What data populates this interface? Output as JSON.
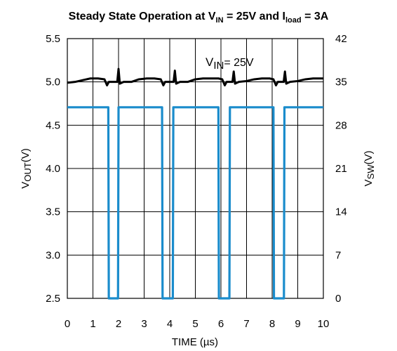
{
  "chart_data": {
    "type": "line",
    "title": {
      "p1": "Steady State Operation at V",
      "sub1": "IN",
      "p2": " = 25V and I",
      "sub2": "load",
      "p3": " = 3A"
    },
    "xlabel": "TIME (µs)",
    "ylabel_left": {
      "main": "V",
      "sub": "OUT",
      "unit": "(V)"
    },
    "ylabel_right": {
      "main": "V",
      "sub": "SW",
      "unit": "(V)"
    },
    "annotation": {
      "main": "V",
      "sub": "IN",
      "rest": "= 25V"
    },
    "xlim": [
      0,
      10
    ],
    "ylim_left": [
      2.5,
      5.5
    ],
    "ylim_right": [
      0,
      42
    ],
    "x_ticks": [
      "0",
      "1",
      "2",
      "3",
      "4",
      "5",
      "6",
      "7",
      "8",
      "9",
      "10"
    ],
    "y_left_ticks": [
      "5.5",
      "5.0",
      "4.5",
      "4.0",
      "3.5",
      "3.0",
      "2.5"
    ],
    "y_right_ticks": [
      "42",
      "35",
      "28",
      "21",
      "14",
      "7",
      "0"
    ],
    "grid": true,
    "colors": {
      "vout": "#000000",
      "vsw": "#1a8ccc"
    },
    "series": [
      {
        "axis": "left",
        "color": "#000000",
        "x": [
          0,
          0.3,
          0.6,
          0.9,
          1.2,
          1.45,
          1.55,
          1.62,
          1.7,
          1.95,
          2.0,
          2.05,
          2.2,
          2.5,
          2.8,
          3.1,
          3.4,
          3.65,
          3.75,
          3.82,
          3.9,
          4.15,
          4.2,
          4.25,
          4.4,
          4.7,
          5.0,
          5.3,
          5.6,
          5.9,
          6.05,
          6.15,
          6.22,
          6.3,
          6.45,
          6.5,
          6.55,
          6.7,
          7.0,
          7.3,
          7.6,
          7.9,
          8.05,
          8.15,
          8.22,
          8.3,
          8.45,
          8.5,
          8.55,
          8.7,
          9.0,
          9.3,
          9.6,
          10.0
        ],
        "y": [
          4.99,
          5.0,
          5.02,
          5.04,
          5.04,
          5.03,
          4.96,
          5.0,
          5.0,
          5.0,
          5.15,
          4.98,
          5.0,
          5.0,
          5.03,
          5.04,
          5.04,
          5.03,
          4.96,
          5.0,
          5.0,
          5.0,
          5.13,
          4.98,
          5.0,
          5.0,
          5.03,
          5.04,
          5.04,
          5.04,
          5.03,
          4.96,
          5.0,
          5.0,
          5.0,
          5.12,
          4.98,
          5.0,
          5.01,
          5.03,
          5.04,
          5.04,
          5.03,
          4.96,
          5.0,
          5.0,
          5.0,
          5.12,
          4.98,
          5.0,
          5.01,
          5.03,
          5.04,
          5.04
        ]
      },
      {
        "axis": "right",
        "color": "#1a8ccc",
        "x": [
          0,
          1.6,
          1.62,
          1.98,
          2.0,
          3.7,
          3.72,
          4.12,
          4.14,
          5.9,
          5.92,
          6.33,
          6.35,
          8.05,
          8.07,
          8.46,
          8.48,
          10.0
        ],
        "y": [
          30.9,
          30.9,
          0,
          0,
          30.9,
          30.9,
          0,
          0,
          30.9,
          30.9,
          0,
          0,
          30.9,
          30.9,
          0,
          0,
          30.9,
          30.9
        ]
      }
    ]
  }
}
